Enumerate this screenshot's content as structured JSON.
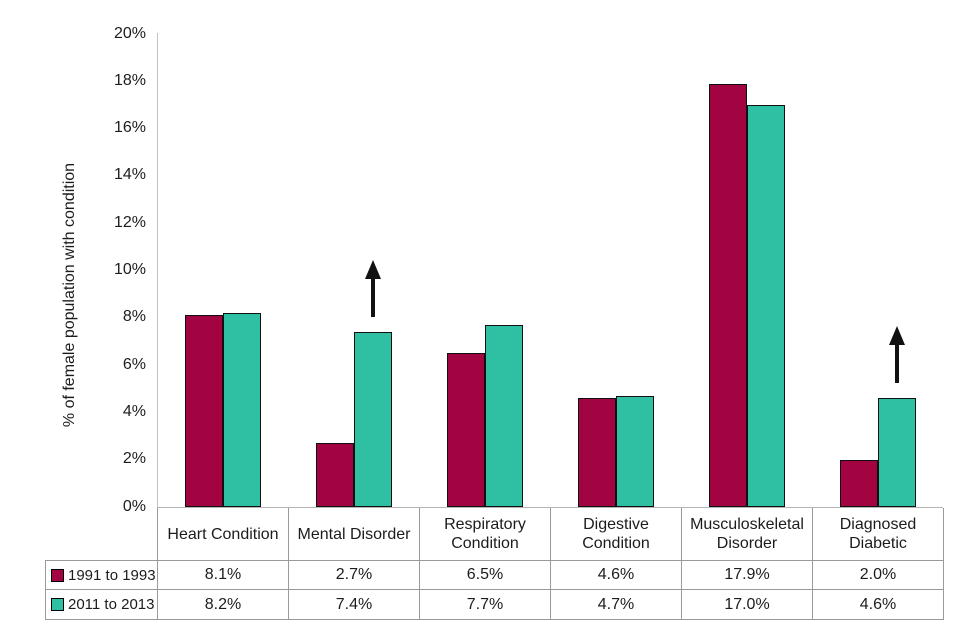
{
  "chart_data": {
    "type": "bar",
    "title": "",
    "xlabel": "",
    "ylabel": "% of female population with condition",
    "categories": [
      "Heart Condition",
      "Mental Disorder",
      "Respiratory Condition",
      "Digestive Condition",
      "Musculoskeletal Disorder",
      "Diagnosed Diabetic"
    ],
    "series": [
      {
        "name": "1991 to 1993",
        "color": "#A10440",
        "values": [
          8.1,
          2.7,
          6.5,
          4.6,
          17.9,
          2.0
        ]
      },
      {
        "name": "2011 to 2013",
        "color": "#2FBFA3",
        "values": [
          8.2,
          7.4,
          7.7,
          4.7,
          17.0,
          4.6
        ]
      }
    ],
    "value_labels": [
      [
        "8.1%",
        "2.7%",
        "6.5%",
        "4.6%",
        "17.9%",
        "2.0%"
      ],
      [
        "8.2%",
        "7.4%",
        "7.7%",
        "4.7%",
        "17.0%",
        "4.6%"
      ]
    ],
    "ylim": [
      0,
      20
    ],
    "ytick_labels_top_to_bottom": [
      "20%",
      "18%",
      "16%",
      "14%",
      "12%",
      "10%",
      "8%",
      "6%",
      "4%",
      "2%",
      "0%"
    ],
    "grid": false,
    "legend_position": "table-left-column",
    "annotations": [
      {
        "type": "up-arrow",
        "category": "Mental Disorder",
        "category_index": 1,
        "series_index": 1
      },
      {
        "type": "up-arrow",
        "category": "Diagnosed Diabetic",
        "category_index": 5,
        "series_index": 1
      }
    ],
    "colors": {
      "bar_border": "#101010",
      "axis_line": "#c2c2c2",
      "table_border": "#9a9a9a",
      "arrow": "#111111"
    }
  }
}
